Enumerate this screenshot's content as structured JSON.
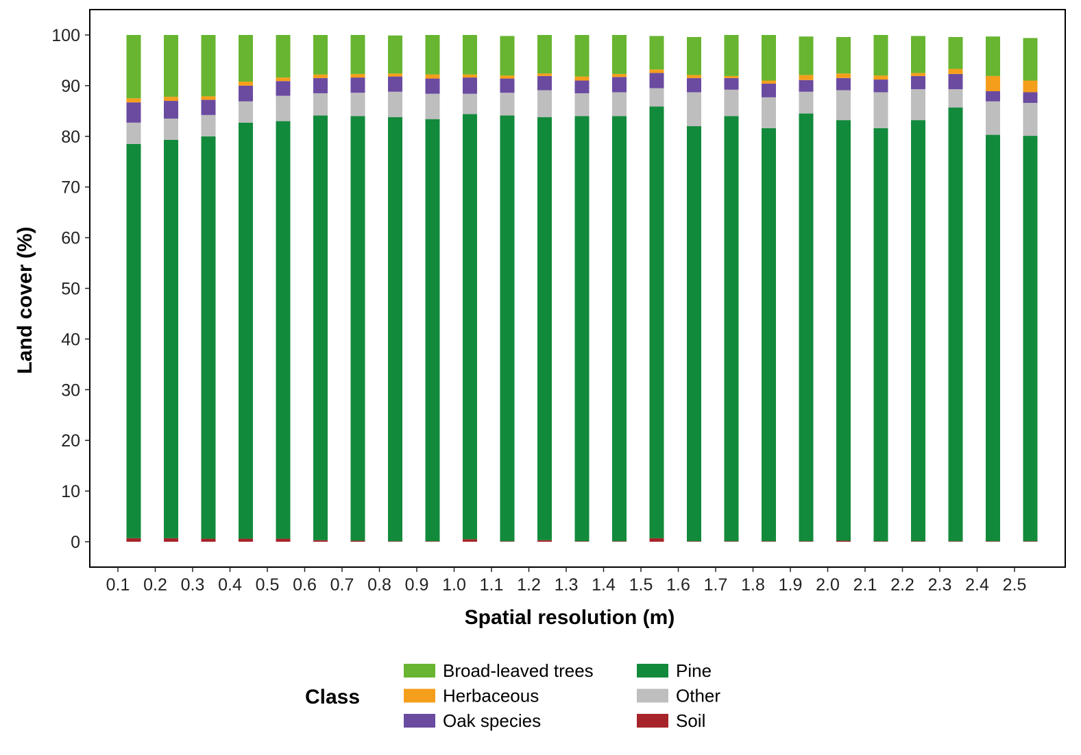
{
  "chart_data": {
    "type": "bar",
    "stacked": true,
    "title": "",
    "xlabel": "Spatial resolution (m)",
    "ylabel": "Land cover (%)",
    "ylim": [
      0,
      100
    ],
    "yticks": [
      0,
      10,
      20,
      30,
      40,
      50,
      60,
      70,
      80,
      90,
      100
    ],
    "ytick_labels": [
      "0",
      "10",
      "20",
      "30",
      "40",
      "50",
      "60",
      "70",
      "80",
      "90",
      "100"
    ],
    "categories": [
      "0.1",
      "0.2",
      "0.3",
      "0.4",
      "0.5",
      "0.6",
      "0.7",
      "0.8",
      "0.9",
      "1.0",
      "1.1",
      "1.2",
      "1.3",
      "1.4",
      "1.5",
      "1.6",
      "1.7",
      "1.8",
      "1.9",
      "2.0",
      "2.1",
      "2.2",
      "2.3",
      "2.4",
      "2.5"
    ],
    "grid": false,
    "legend": {
      "title": "Class",
      "placement": "bottom"
    },
    "series": [
      {
        "name": "Soil",
        "color": "#A6242A",
        "values": [
          0.7,
          0.7,
          0.6,
          0.6,
          0.6,
          0.3,
          0.2,
          0.1,
          0.1,
          0.5,
          0.1,
          0.3,
          0.1,
          0.1,
          0.7,
          0.1,
          0.1,
          0.1,
          0.1,
          0.2,
          0.1,
          0.1,
          0.1,
          0.1,
          0.1
        ]
      },
      {
        "name": "Pine",
        "color": "#128A3B",
        "values": [
          77.8,
          78.6,
          79.4,
          82.1,
          82.4,
          83.8,
          83.8,
          83.7,
          83.3,
          83.9,
          84.0,
          83.5,
          83.9,
          83.9,
          85.2,
          81.9,
          83.9,
          81.5,
          84.4,
          83.0,
          81.5,
          83.1,
          85.6,
          80.2,
          80.0
        ]
      },
      {
        "name": "Other",
        "color": "#BEBEBE",
        "values": [
          4.2,
          4.2,
          4.2,
          4.2,
          5.0,
          4.4,
          4.6,
          5.0,
          5.0,
          4.0,
          4.5,
          5.3,
          4.5,
          4.7,
          3.6,
          6.7,
          5.2,
          6.1,
          4.3,
          5.9,
          7.1,
          6.1,
          3.6,
          6.6,
          6.5
        ]
      },
      {
        "name": "Oak species",
        "color": "#6A4BA0",
        "values": [
          4.0,
          3.5,
          3.0,
          3.1,
          2.9,
          3.0,
          3.0,
          3.0,
          3.0,
          3.2,
          2.8,
          2.8,
          2.5,
          3.0,
          3.0,
          2.8,
          2.3,
          2.7,
          2.3,
          2.4,
          2.5,
          2.6,
          3.0,
          2.0,
          2.1
        ]
      },
      {
        "name": "Herbaceous",
        "color": "#F59E1B",
        "values": [
          0.8,
          0.8,
          0.7,
          0.8,
          0.7,
          0.7,
          0.7,
          0.6,
          0.8,
          0.6,
          0.6,
          0.5,
          0.8,
          0.6,
          0.7,
          0.6,
          0.4,
          0.6,
          1.0,
          0.9,
          0.8,
          0.6,
          1.0,
          3.0,
          2.3
        ]
      },
      {
        "name": "Broad-leaved trees",
        "color": "#67B530",
        "values": [
          12.5,
          12.2,
          12.1,
          9.2,
          8.4,
          7.8,
          7.7,
          7.5,
          7.8,
          7.8,
          7.8,
          7.6,
          8.2,
          7.7,
          6.6,
          7.5,
          8.1,
          9.0,
          7.6,
          7.2,
          8.0,
          7.3,
          6.3,
          7.8,
          8.4
        ]
      }
    ],
    "legend_order": [
      "Broad-leaved trees",
      "Herbaceous",
      "Oak species",
      "Pine",
      "Other",
      "Soil"
    ]
  }
}
